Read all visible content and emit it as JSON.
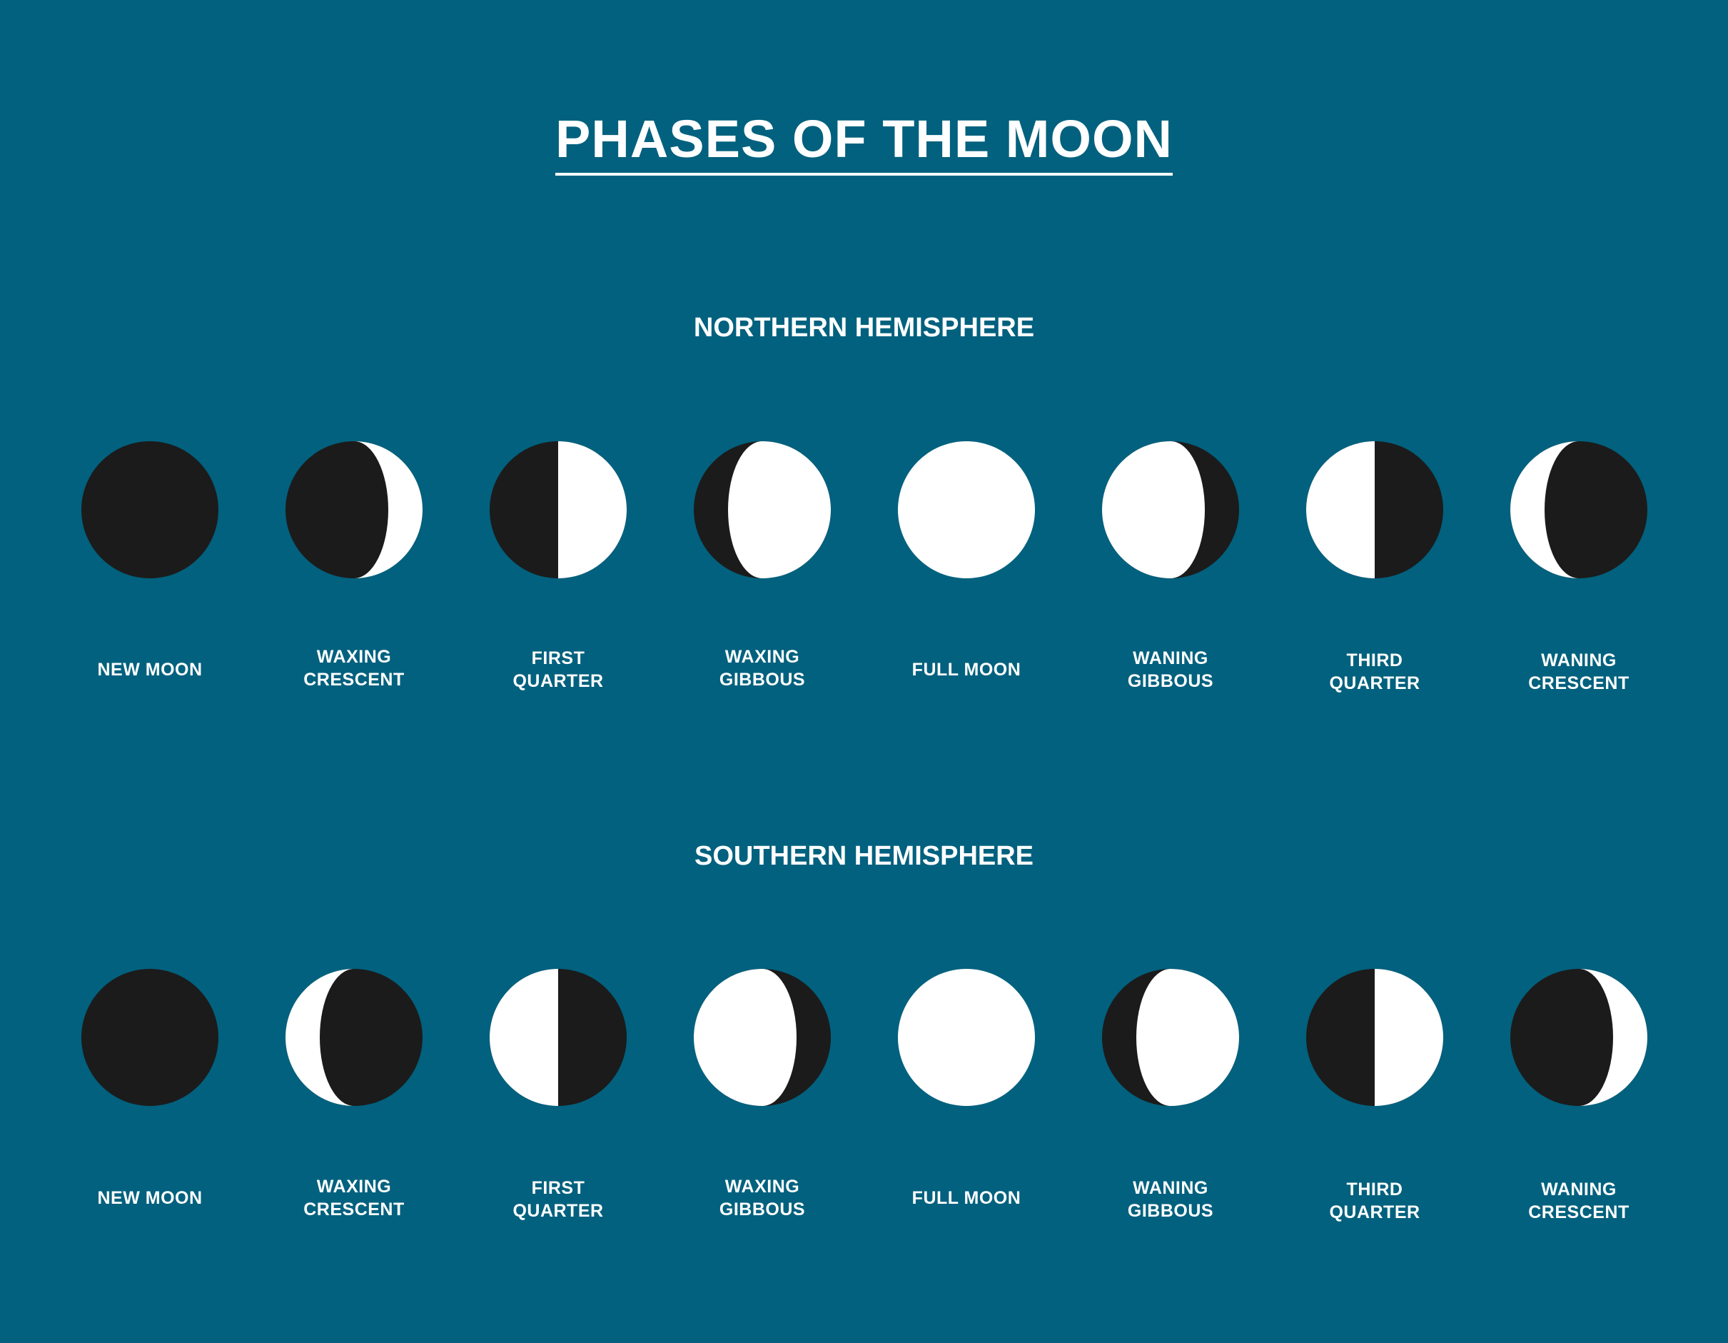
{
  "colors": {
    "background": "#01617e",
    "dark": "#1b1b1b",
    "light": "#ffffff",
    "text": "#ffffff"
  },
  "title": "PHASES OF THE MOON",
  "hemispheres": [
    {
      "heading": "NORTHERN HEMISPHERE",
      "phases": [
        {
          "lines": [
            "NEW MOON"
          ],
          "lit": 0,
          "lit_side": "none"
        },
        {
          "lines": [
            "WAXING",
            "CRESCENT"
          ],
          "lit": 0.25,
          "lit_side": "right"
        },
        {
          "lines": [
            "FIRST",
            "QUARTER"
          ],
          "lit": 0.5,
          "lit_side": "right"
        },
        {
          "lines": [
            "WAXING",
            "GIBBOUS"
          ],
          "lit": 0.75,
          "lit_side": "right"
        },
        {
          "lines": [
            "FULL MOON"
          ],
          "lit": 1,
          "lit_side": "all"
        },
        {
          "lines": [
            "WANING",
            "GIBBOUS"
          ],
          "lit": 0.75,
          "lit_side": "left"
        },
        {
          "lines": [
            "THIRD",
            "QUARTER"
          ],
          "lit": 0.5,
          "lit_side": "left"
        },
        {
          "lines": [
            "WANING",
            "CRESCENT"
          ],
          "lit": 0.25,
          "lit_side": "left"
        }
      ]
    },
    {
      "heading": "SOUTHERN HEMISPHERE",
      "phases": [
        {
          "lines": [
            "NEW MOON"
          ],
          "lit": 0,
          "lit_side": "none"
        },
        {
          "lines": [
            "WAXING",
            "CRESCENT"
          ],
          "lit": 0.25,
          "lit_side": "left"
        },
        {
          "lines": [
            "FIRST",
            "QUARTER"
          ],
          "lit": 0.5,
          "lit_side": "left"
        },
        {
          "lines": [
            "WAXING",
            "GIBBOUS"
          ],
          "lit": 0.75,
          "lit_side": "left"
        },
        {
          "lines": [
            "FULL MOON"
          ],
          "lit": 1,
          "lit_side": "all"
        },
        {
          "lines": [
            "WANING",
            "GIBBOUS"
          ],
          "lit": 0.75,
          "lit_side": "right"
        },
        {
          "lines": [
            "THIRD",
            "QUARTER"
          ],
          "lit": 0.5,
          "lit_side": "right"
        },
        {
          "lines": [
            "WANING",
            "CRESCENT"
          ],
          "lit": 0.25,
          "lit_side": "right"
        }
      ]
    }
  ]
}
